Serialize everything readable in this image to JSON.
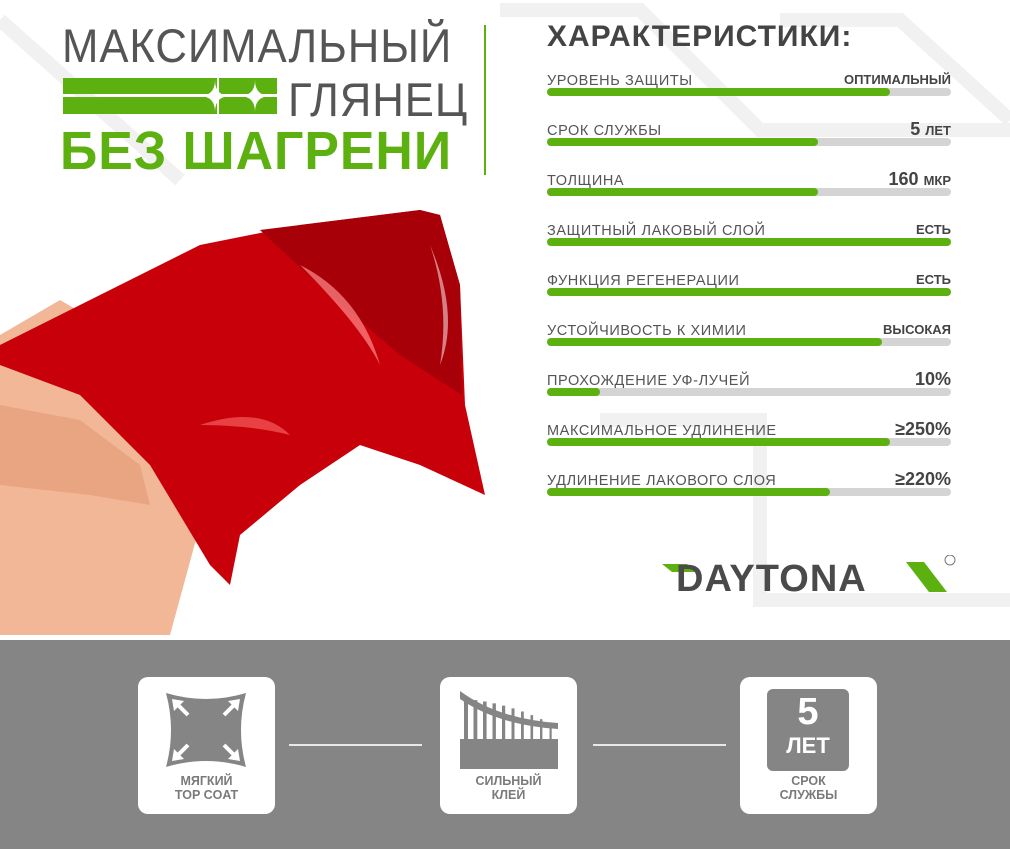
{
  "headline": {
    "line1": "МАКСИМАЛЬНЫЙ",
    "line2": "ГЛЯНЕЦ",
    "line3": "БЕЗ ШАГРЕНИ"
  },
  "colors": {
    "accent": "#5cb111",
    "text": "#555555",
    "track": "#d4d4d4",
    "bottom_band": "#858585",
    "film": "#c8000a"
  },
  "specs": {
    "title": "ХАРАКТЕРИСТИКИ:",
    "items": [
      {
        "label": "УРОВЕНЬ ЗАЩИТЫ",
        "value": "ОПТИМАЛЬНЫЙ",
        "level": 85
      },
      {
        "label": "СРОК СЛУЖБЫ",
        "value_num": "5",
        "value_unit": "ЛЕТ",
        "level": 67
      },
      {
        "label": "ТОЛЩИНА",
        "value_num": "160",
        "value_unit": "МКР",
        "level": 67
      },
      {
        "label": "ЗАЩИТНЫЙ ЛАКОВЫЙ СЛОЙ",
        "value": "ЕСТЬ",
        "level": 100
      },
      {
        "label": "ФУНКЦИЯ РЕГЕНЕРАЦИИ",
        "value": "ЕСТЬ",
        "level": 100
      },
      {
        "label": "УСТОЙЧИВОСТЬ К ХИМИИ",
        "value": "ВЫСОКАЯ",
        "level": 83
      },
      {
        "label": "ПРОХОЖДЕНИЕ УФ-ЛУЧЕЙ",
        "value_num": "10%",
        "level": 13
      },
      {
        "label": "МАКСИМАЛЬНОЕ УДЛИНЕНИЕ",
        "value_num": "≥250%",
        "level": 85
      },
      {
        "label": "УДЛИНЕНИЕ ЛАКОВОГО СЛОЯ",
        "value_num": "≥220%",
        "level": 70
      }
    ]
  },
  "logo": {
    "text": "DAYTONA",
    "mark": "®"
  },
  "features": [
    {
      "icon": "soft-stretch-icon",
      "line1": "МЯГКИЙ",
      "line2": "TOP COAT"
    },
    {
      "icon": "adhesive-icon",
      "line1": "СИЛЬНЫЙ",
      "line2": "КЛЕЙ"
    },
    {
      "icon": "badge-5-years-icon",
      "badge_num": "5",
      "badge_unit": "ЛЕТ",
      "line1": "СРОК",
      "line2": "СЛУЖБЫ"
    }
  ]
}
